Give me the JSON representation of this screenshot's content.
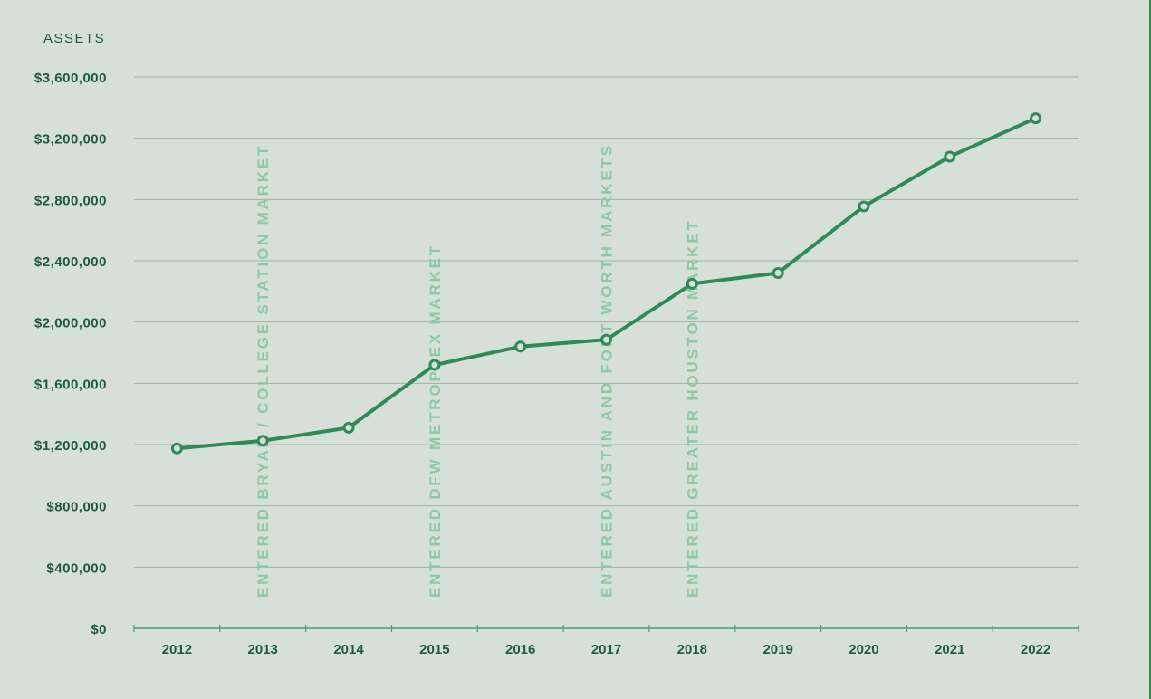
{
  "chart_data": {
    "type": "line",
    "ylabel": "ASSETS",
    "categories": [
      "2012",
      "2013",
      "2014",
      "2015",
      "2016",
      "2017",
      "2018",
      "2019",
      "2020",
      "2021",
      "2022"
    ],
    "values": [
      1175000,
      1225000,
      1310000,
      1720000,
      1840000,
      1885000,
      2250000,
      2320000,
      2755000,
      3080000,
      3330000
    ],
    "ylim": [
      0,
      3600000
    ],
    "yticks": [
      {
        "value": 0,
        "label": "$0"
      },
      {
        "value": 400000,
        "label": "$400,000"
      },
      {
        "value": 800000,
        "label": "$800,000"
      },
      {
        "value": 1200000,
        "label": "$1,200,000"
      },
      {
        "value": 1600000,
        "label": "$1,600,000"
      },
      {
        "value": 2000000,
        "label": "$2,000,000"
      },
      {
        "value": 2400000,
        "label": "$2,400,000"
      },
      {
        "value": 2800000,
        "label": "$2,800,000"
      },
      {
        "value": 3200000,
        "label": "$3,200,000"
      },
      {
        "value": 3600000,
        "label": "$3,600,000"
      }
    ],
    "grid": true,
    "annotations": [
      {
        "category": "2013",
        "text": "ENTERED BRYAN / COLLEGE STATION MARKET"
      },
      {
        "category": "2015",
        "text": "ENTERED DFW METROPLEX MARKET"
      },
      {
        "category": "2017",
        "text": "ENTERED AUSTIN AND FORT WORTH MARKETS"
      },
      {
        "category": "2018",
        "text": "ENTERED GREATER HOUSTON MARKET"
      }
    ],
    "colors": {
      "background": "#d6e0d6",
      "line": "#2f8a58",
      "annotation": "#8cc9a2",
      "axis_text": "#1f5a3c",
      "grid": "#9fb0a3",
      "marker_fill": "#d6e0d6"
    }
  }
}
